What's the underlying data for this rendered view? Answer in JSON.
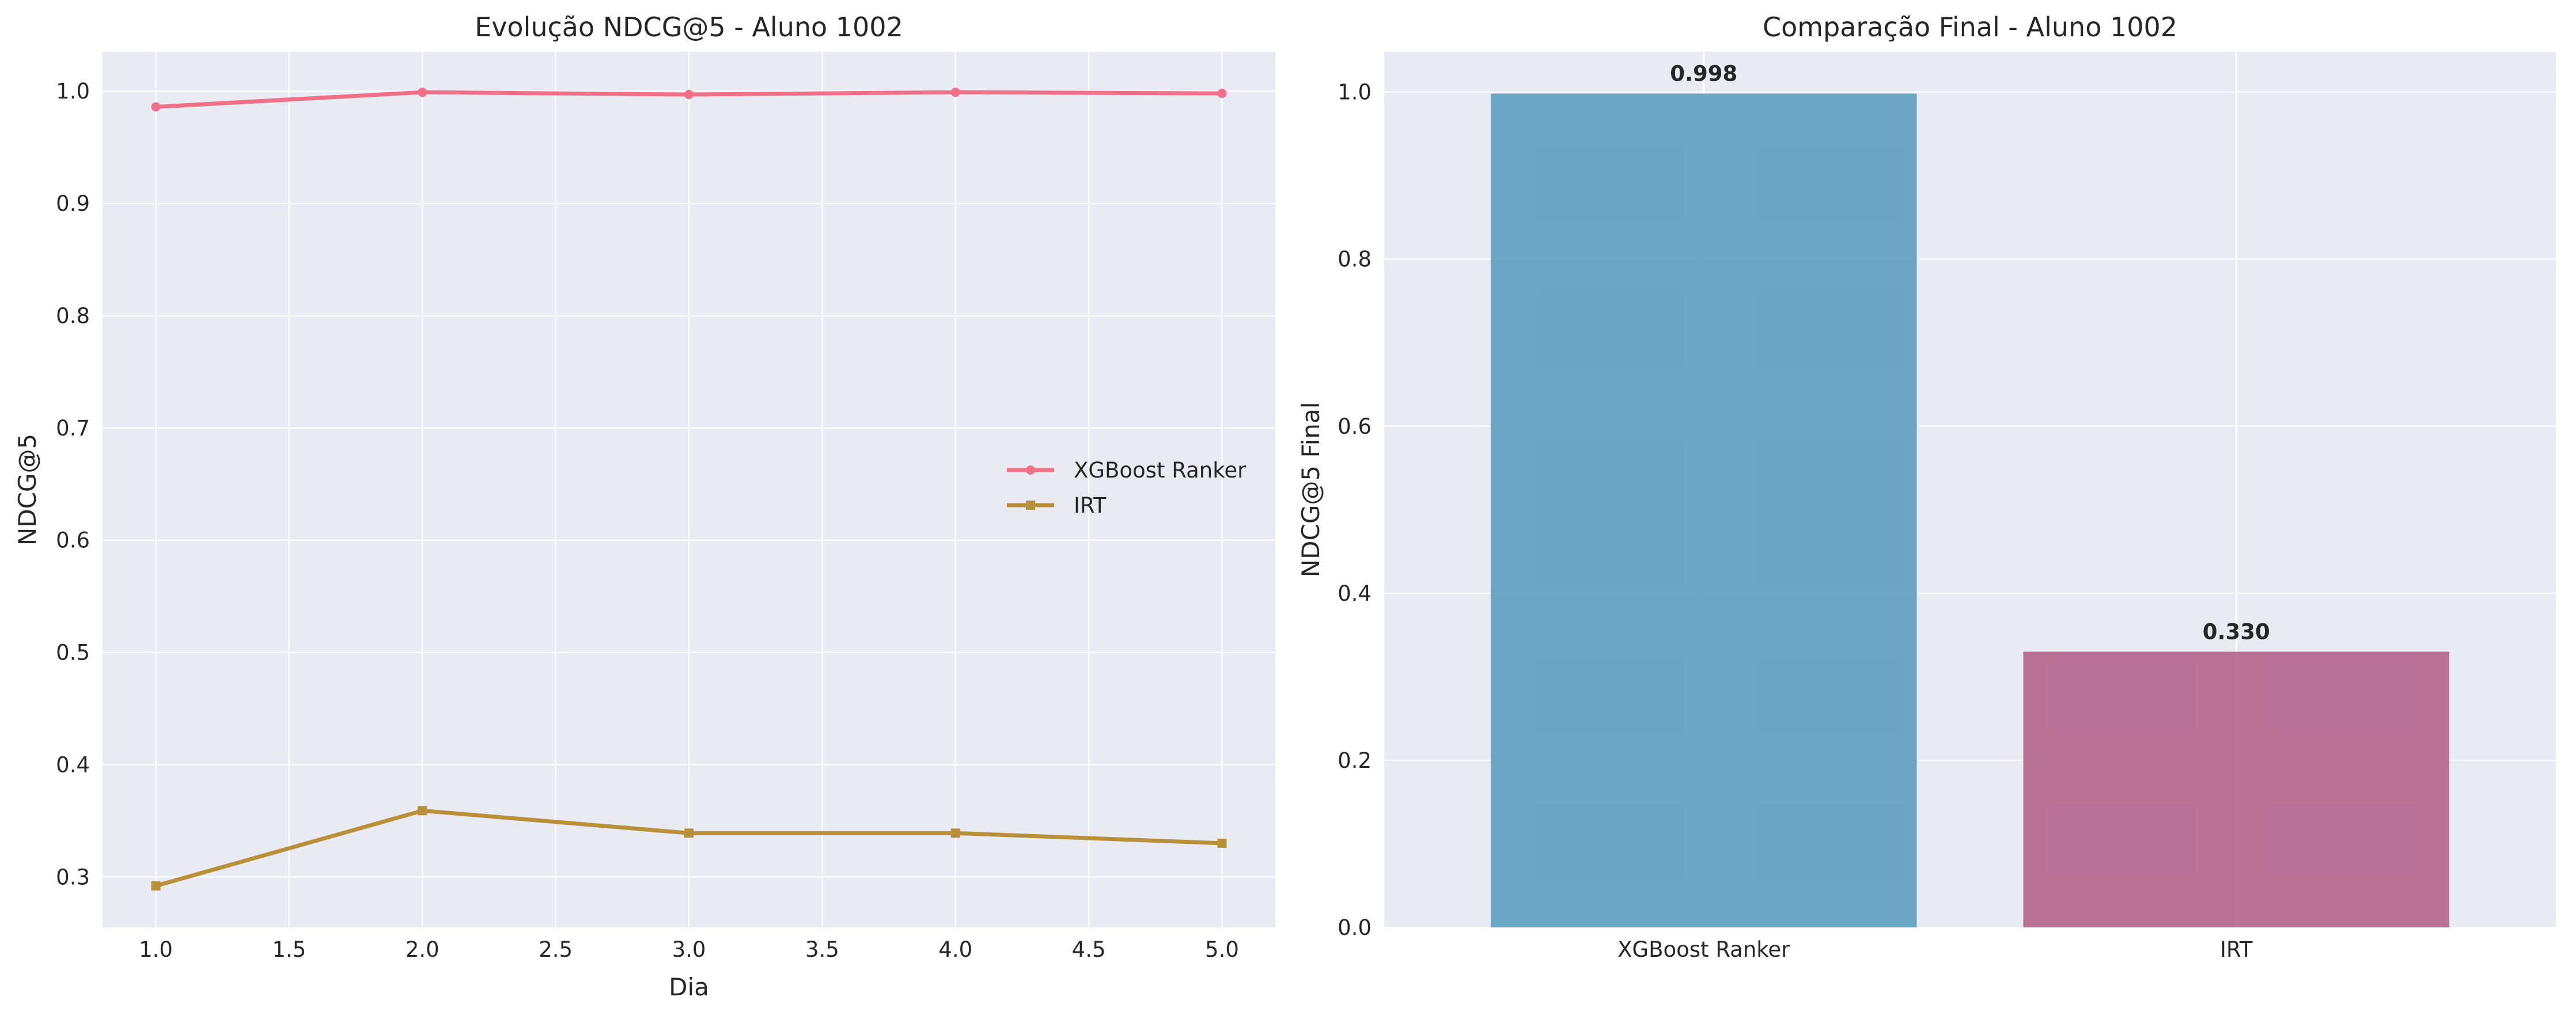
{
  "chart_data": [
    {
      "type": "line",
      "title": "Evolução NDCG@5 - Aluno 1002",
      "xlabel": "Dia",
      "ylabel": "NDCG@5",
      "x": [
        1.0,
        2.0,
        3.0,
        4.0,
        5.0
      ],
      "xlim": [
        0.8,
        5.2
      ],
      "ylim": [
        0.255,
        1.035
      ],
      "xticks": [
        "1.0",
        "1.5",
        "2.0",
        "2.5",
        "3.0",
        "3.5",
        "4.0",
        "4.5",
        "5.0"
      ],
      "yticks": [
        "0.3",
        "0.4",
        "0.5",
        "0.6",
        "0.7",
        "0.8",
        "0.9",
        "1.0"
      ],
      "grid": true,
      "legend_position": "center-right",
      "series": [
        {
          "name": "XGBoost Ranker",
          "values": [
            0.986,
            0.999,
            0.997,
            0.999,
            0.998
          ],
          "color": "#f0708a",
          "marker": "circle"
        },
        {
          "name": "IRT",
          "values": [
            0.292,
            0.359,
            0.339,
            0.339,
            0.33
          ],
          "color": "#b8903a",
          "marker": "square"
        }
      ]
    },
    {
      "type": "bar",
      "title": "Comparação Final - Aluno 1002",
      "xlabel": "",
      "ylabel": "NDCG@5 Final",
      "categories": [
        "XGBoost Ranker",
        "IRT"
      ],
      "values": [
        0.998,
        0.33
      ],
      "value_labels": [
        "0.998",
        "0.330"
      ],
      "colors": [
        "#5f9fc0",
        "#b5688f"
      ],
      "ylim": [
        0,
        1.048
      ],
      "yticks": [
        "0.0",
        "0.2",
        "0.4",
        "0.6",
        "0.8",
        "1.0"
      ],
      "grid": true
    }
  ],
  "style": {
    "axes_background": "#eaeaf2",
    "grid_color": "#ffffff"
  }
}
